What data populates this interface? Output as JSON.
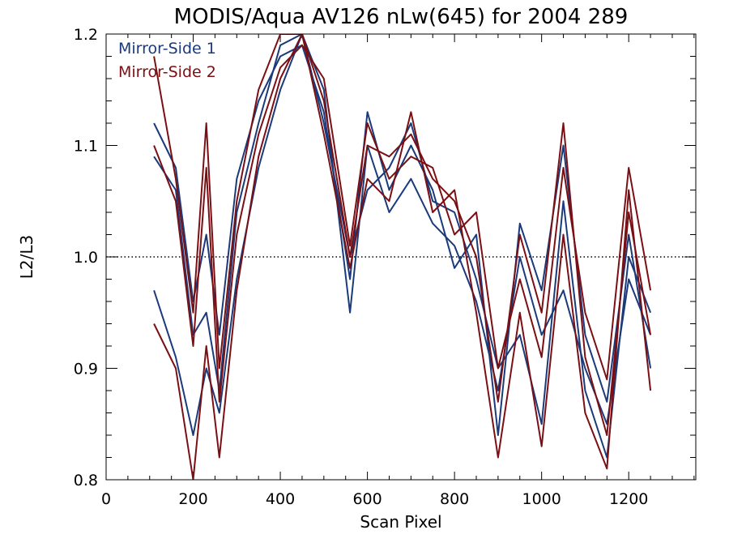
{
  "chart_data": {
    "type": "line",
    "title": "MODIS/Aqua AV126 nLw(645) for 2004 289",
    "xlabel": "Scan Pixel",
    "ylabel": "L2/L3",
    "xlim": [
      0,
      1354
    ],
    "ylim": [
      0.8,
      1.2
    ],
    "x_ticks": [
      "0",
      "200",
      "400",
      "600",
      "800",
      "1000",
      "1200"
    ],
    "y_ticks": [
      "0.8",
      "0.9",
      "1.0",
      "1.1",
      "1.2"
    ],
    "reference_line": {
      "y": 1.0,
      "style": "dotted"
    },
    "legend": {
      "placement": "top-left"
    },
    "colors": {
      "mirror_side_1": "#1a3a7a",
      "mirror_side_2": "#7a0f14"
    },
    "series": [
      {
        "name": "Mirror-Side 1",
        "group": "Mirror-Side 1",
        "x": [
          110,
          160,
          200,
          230,
          260,
          300,
          350,
          400,
          450,
          500,
          560,
          600,
          650,
          700,
          750,
          800,
          850,
          900,
          950,
          1000,
          1050,
          1100,
          1150,
          1200,
          1250
        ],
        "values": [
          1.09,
          1.06,
          0.93,
          0.95,
          0.88,
          1.04,
          1.12,
          1.19,
          1.2,
          1.15,
          0.95,
          1.1,
          1.04,
          1.07,
          1.03,
          1.01,
          0.96,
          0.88,
          1.0,
          0.93,
          0.97,
          0.9,
          0.85,
          0.98,
          0.93
        ]
      },
      {
        "name": "Mirror-Side 1",
        "group": "Mirror-Side 1",
        "x": [
          110,
          160,
          200,
          230,
          260,
          300,
          350,
          400,
          450,
          500,
          560,
          600,
          650,
          700,
          750,
          800,
          850,
          900,
          950,
          1000,
          1050,
          1100,
          1150,
          1200,
          1250
        ],
        "values": [
          0.97,
          0.91,
          0.84,
          0.9,
          0.86,
          0.98,
          1.08,
          1.15,
          1.2,
          1.12,
          1.0,
          1.06,
          1.08,
          1.12,
          1.05,
          1.04,
          0.98,
          0.9,
          0.93,
          0.85,
          1.05,
          0.88,
          0.82,
          1.0,
          0.95
        ]
      },
      {
        "name": "Mirror-Side 1",
        "group": "Mirror-Side 1",
        "x": [
          110,
          160,
          200,
          230,
          260,
          300,
          350,
          400,
          450,
          500,
          560,
          600,
          650,
          700,
          750,
          800,
          850,
          900,
          950,
          1000,
          1050,
          1100,
          1150,
          1200,
          1250
        ],
        "values": [
          1.12,
          1.08,
          0.96,
          1.02,
          0.93,
          1.07,
          1.14,
          1.18,
          1.19,
          1.13,
          0.98,
          1.13,
          1.06,
          1.1,
          1.06,
          0.99,
          1.02,
          0.84,
          1.03,
          0.97,
          1.1,
          0.93,
          0.87,
          1.02,
          0.9
        ]
      },
      {
        "name": "Mirror-Side 2",
        "group": "Mirror-Side 2",
        "x": [
          110,
          160,
          200,
          230,
          260,
          300,
          350,
          400,
          450,
          500,
          560,
          600,
          650,
          700,
          750,
          800,
          850,
          900,
          950,
          1000,
          1050,
          1100,
          1150,
          1200,
          1250
        ],
        "values": [
          1.18,
          1.07,
          0.95,
          1.12,
          0.9,
          1.05,
          1.15,
          1.2,
          1.2,
          1.14,
          1.0,
          1.1,
          1.09,
          1.11,
          1.07,
          1.05,
          1.0,
          0.87,
          1.02,
          0.95,
          1.12,
          0.91,
          0.84,
          1.04,
          0.93
        ]
      },
      {
        "name": "Mirror-Side 2",
        "group": "Mirror-Side 2",
        "x": [
          110,
          160,
          200,
          230,
          260,
          300,
          350,
          400,
          450,
          500,
          560,
          600,
          650,
          700,
          750,
          800,
          850,
          900,
          950,
          1000,
          1050,
          1100,
          1150,
          1200,
          1250
        ],
        "values": [
          0.94,
          0.9,
          0.8,
          0.92,
          0.82,
          0.97,
          1.09,
          1.16,
          1.2,
          1.11,
          0.99,
          1.07,
          1.05,
          1.13,
          1.04,
          1.06,
          0.95,
          0.82,
          0.95,
          0.83,
          1.02,
          0.86,
          0.81,
          1.06,
          0.88
        ]
      },
      {
        "name": "Mirror-Side 2",
        "group": "Mirror-Side 2",
        "x": [
          110,
          160,
          200,
          230,
          260,
          300,
          350,
          400,
          450,
          500,
          560,
          600,
          650,
          700,
          750,
          800,
          850,
          900,
          950,
          1000,
          1050,
          1100,
          1150,
          1200,
          1250
        ],
        "values": [
          1.1,
          1.05,
          0.92,
          1.08,
          0.87,
          1.02,
          1.11,
          1.17,
          1.19,
          1.16,
          1.01,
          1.12,
          1.07,
          1.09,
          1.08,
          1.02,
          1.04,
          0.9,
          0.98,
          0.91,
          1.08,
          0.95,
          0.89,
          1.08,
          0.97
        ]
      }
    ]
  }
}
